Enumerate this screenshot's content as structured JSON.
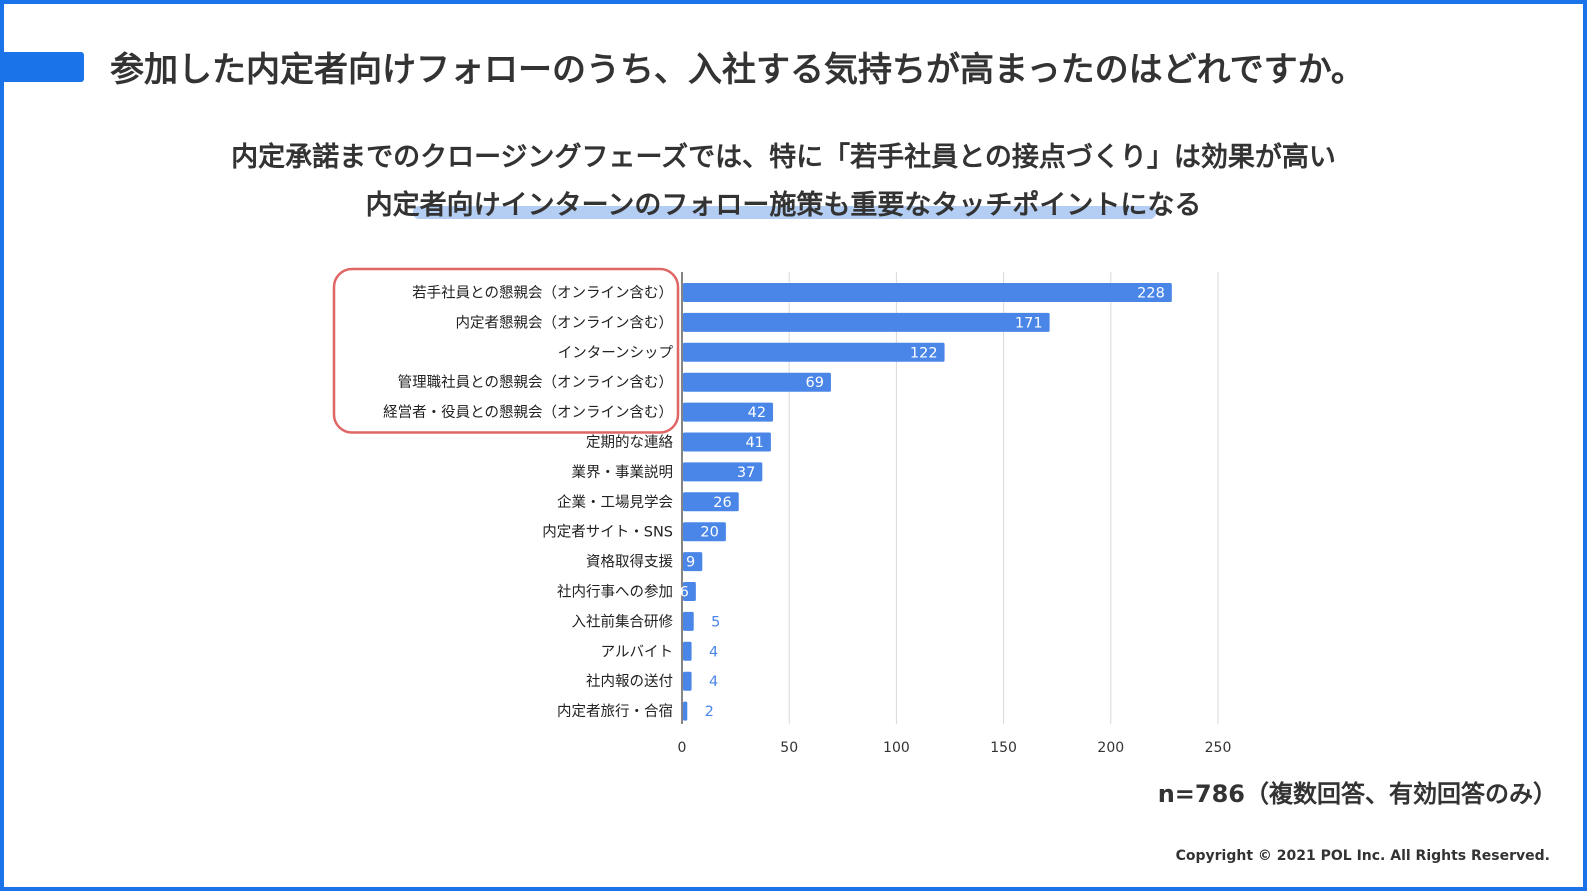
{
  "header": {
    "title": "参加した内定者向けフォローのうち、入社する気持ちが高まったのはどれですか。"
  },
  "subtitle": {
    "line1": "内定承諾までのクロージングフェーズでは、特に「若手社員との接点づくり」は効果が高い",
    "line2": "内定者向けインターンのフォロー施策も重要なタッチポイントになる"
  },
  "chart_data": {
    "type": "bar",
    "orientation": "horizontal",
    "categories": [
      "若手社員との懇親会（オンライン含む）",
      "内定者懇親会（オンライン含む）",
      "インターンシップ",
      "管理職社員との懇親会（オンライン含む）",
      "経営者・役員との懇親会（オンライン含む）",
      "定期的な連絡",
      "業界・事業説明",
      "企業・工場見学会",
      "内定者サイト・SNS",
      "資格取得支援",
      "社内行事への参加",
      "入社前集合研修",
      "アルバイト",
      "社内報の送付",
      "内定者旅行・合宿"
    ],
    "values": [
      228,
      171,
      122,
      69,
      42,
      41,
      37,
      26,
      20,
      9,
      6,
      5,
      4,
      4,
      2
    ],
    "xlim": [
      0,
      250
    ],
    "xticks": [
      0,
      50,
      100,
      150,
      200,
      250
    ],
    "grid": true,
    "highlighted_categories_count": 5,
    "bar_color": "#4a86e8",
    "highlight_box_color": "#e06666"
  },
  "footer": {
    "note": "n=786（複数回答、有効回答のみ）",
    "copyright": "Copyright © 2021 POL Inc. All Rights Reserved."
  }
}
